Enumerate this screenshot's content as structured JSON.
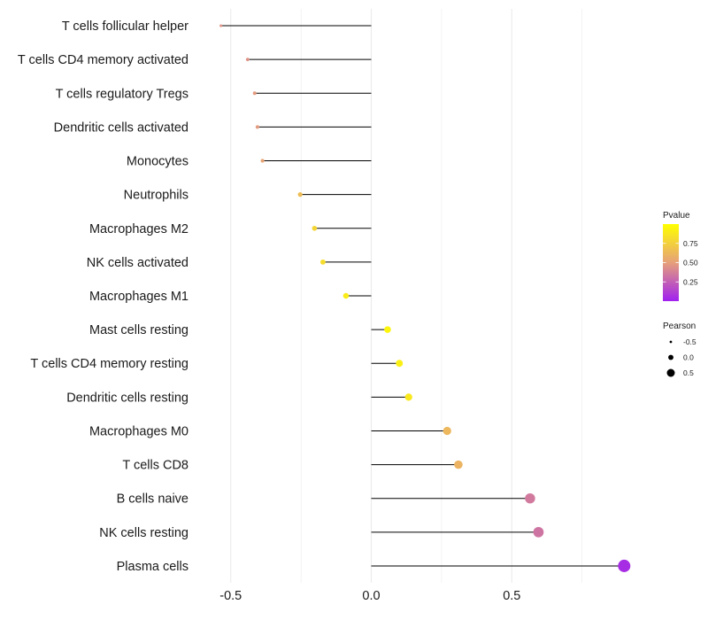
{
  "chart_data": {
    "type": "lollipop",
    "title": "",
    "xlabel": "",
    "ylabel": "",
    "xlim": [
      -0.6,
      0.94
    ],
    "x_ticks": [
      -0.5,
      0.0,
      0.5
    ],
    "x_tick_labels": [
      "-0.5",
      "0.0",
      "0.5"
    ],
    "grid": true,
    "categories": [
      "T cells follicular helper",
      "T cells CD4 memory activated",
      "T cells regulatory  Tregs",
      "Dendritic cells activated",
      "Monocytes",
      "Neutrophils",
      "Macrophages M2",
      "NK cells activated",
      "Macrophages M1",
      "Mast cells resting",
      "T cells CD4 memory resting",
      "Dendritic cells resting",
      "Macrophages M0",
      "T cells CD8",
      "B cells naive",
      "NK cells resting",
      "Plasma cells"
    ],
    "pearson": [
      -0.535,
      -0.44,
      -0.415,
      -0.405,
      -0.387,
      -0.253,
      -0.202,
      -0.172,
      -0.09,
      0.058,
      0.1,
      0.133,
      0.27,
      0.31,
      0.565,
      0.595,
      0.9
    ],
    "pvalue": [
      0.45,
      0.45,
      0.48,
      0.48,
      0.52,
      0.65,
      0.78,
      0.82,
      0.9,
      0.95,
      0.92,
      0.88,
      0.62,
      0.6,
      0.35,
      0.33,
      0.05
    ],
    "legend_color": {
      "title": "Pvalue",
      "ticks": [
        0.75,
        0.5,
        0.25
      ],
      "tick_labels": [
        "0.75",
        "0.50",
        "0.25"
      ],
      "range": [
        0.0,
        1.0
      ],
      "low_color": "#a020f0",
      "mid_color": "#e6a07a",
      "high_color": "#ffff00"
    },
    "legend_size": {
      "title": "Pearson",
      "values": [
        -0.5,
        0.0,
        0.5
      ],
      "labels": [
        "-0.5",
        "0.0",
        "0.5"
      ]
    },
    "legend_position": "right"
  },
  "colors": {
    "stem": "#000000",
    "grid": "#ebebeb",
    "background": "#ffffff"
  }
}
